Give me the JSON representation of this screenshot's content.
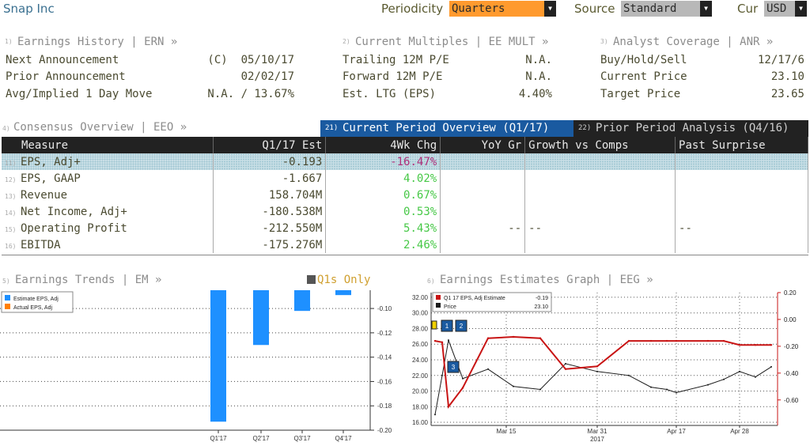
{
  "header": {
    "ticker_name": "Snap Inc",
    "periodicity_label": "Periodicity",
    "periodicity_value": "Quarters",
    "source_label": "Source",
    "source_value": "Standard",
    "cur_label": "Cur",
    "cur_value": "USD"
  },
  "ern": {
    "num": "1)",
    "title": "Earnings History | ERN »",
    "rows": [
      {
        "label": "Next Announcement",
        "value": "(C)  05/10/17"
      },
      {
        "label": "Prior Announcement",
        "value": "02/02/17"
      },
      {
        "label": "Avg/Implied 1 Day Move",
        "value": "N.A. / 13.67%"
      }
    ]
  },
  "mult": {
    "num": "2)",
    "title": "Current Multiples | EE MULT »",
    "rows": [
      {
        "label": "Trailing 12M P/E",
        "value": "N.A."
      },
      {
        "label": "Forward 12M P/E",
        "value": "N.A."
      },
      {
        "label": "Est. LTG (EPS)",
        "value": "4.40%"
      }
    ]
  },
  "anr": {
    "num": "3)",
    "title": "Analyst Coverage | ANR »",
    "rows": [
      {
        "label": "Buy/Hold/Sell",
        "value": "12/17/6"
      },
      {
        "label": "Current Price",
        "value": "23.10"
      },
      {
        "label": "Target Price",
        "value": "23.65"
      }
    ]
  },
  "eeo": {
    "num": "4)",
    "title": "Consensus Overview | EEO »",
    "tab1_num": "21)",
    "tab1": "Current Period Overview (Q1/17)",
    "tab2_num": "22)",
    "tab2": "Prior Period Analysis (Q4/16)",
    "columns": [
      "Measure",
      "Q1/17 Est",
      "4Wk Chg",
      "YoY Gr",
      "Growth vs Comps",
      "Past Surprise"
    ],
    "rows": [
      {
        "num": "11)",
        "measure": "EPS, Adj+",
        "est": "-0.193",
        "chg": "-16.47%",
        "chg_color": "#b0307a"
      },
      {
        "num": "12)",
        "measure": "EPS, GAAP",
        "est": "-1.667",
        "chg": "4.02%",
        "chg_color": "#46c846"
      },
      {
        "num": "13)",
        "measure": "Revenue",
        "est": "158.704M",
        "chg": "0.67%",
        "chg_color": "#46c846"
      },
      {
        "num": "14)",
        "measure": "Net Income, Adj+",
        "est": "-180.538M",
        "chg": "0.53%",
        "chg_color": "#46c846"
      },
      {
        "num": "15)",
        "measure": "Operating Profit",
        "est": "-212.550M",
        "chg": "5.43%",
        "chg_color": "#46c846",
        "yoy": "--",
        "comps": "--",
        "surprise": "--"
      },
      {
        "num": "16)",
        "measure": "EBITDA",
        "est": "-175.276M",
        "chg": "2.46%",
        "chg_color": "#46c846"
      }
    ]
  },
  "em": {
    "num": "5)",
    "title": "Earnings Trends | EM »",
    "toggle": "Q1s Only",
    "legend": [
      "Estimate EPS, Adj",
      "Actual EPS, Adj"
    ]
  },
  "eeg": {
    "num": "6)",
    "title": "Earnings Estimates Graph | EEG »",
    "legend": [
      {
        "label": "Q1 17 EPS, Adj Estimate",
        "value": "-0.19"
      },
      {
        "label": "Price",
        "value": "23.10"
      }
    ],
    "x_labels": [
      "Mar 15",
      "Mar 31",
      "Apr 17",
      "Apr 28"
    ],
    "year_label": "2017",
    "markers": [
      "1",
      "2",
      "3"
    ]
  },
  "colors": {
    "estimate_bar": "#1e90ff",
    "actual_bar": "#ff7f00",
    "est_line": "#c81414",
    "price_line": "#1a1a1a",
    "header_bg": "#222222",
    "selected_dropdown": "#ff9a2e",
    "active_tab": "#1a5aa0"
  },
  "chart_data": [
    {
      "type": "bar",
      "title": "Earnings Trends",
      "categories": [
        "Q1'17",
        "Q2'17",
        "Q3'17",
        "Q4'17"
      ],
      "series": [
        {
          "name": "Estimate EPS, Adj",
          "values": [
            -0.193,
            -0.13,
            -0.102,
            -0.089
          ]
        },
        {
          "name": "Actual EPS, Adj",
          "values": [
            null,
            null,
            null,
            null
          ]
        }
      ],
      "y_ticks": [
        "-0.10",
        "-0.12",
        "-0.14",
        "-0.16",
        "-0.18",
        "-0.20"
      ],
      "ylim": [
        -0.2,
        -0.085
      ],
      "y_axis_side": "right",
      "legend_position": "top-left",
      "grid": true
    },
    {
      "type": "line",
      "title": "Earnings Estimates Graph",
      "x": [
        "Mar 02",
        "Mar 05",
        "Mar 07",
        "Mar 10",
        "Mar 15",
        "Mar 20",
        "Mar 25",
        "Mar 28",
        "Mar 31",
        "Apr 05",
        "Apr 10",
        "Apr 14",
        "Apr 17",
        "Apr 22",
        "Apr 25",
        "Apr 28",
        "May 01",
        "May 05"
      ],
      "series": [
        {
          "name": "Q1 17 EPS, Adj Estimate",
          "axis": "right",
          "values": [
            -0.16,
            -0.17,
            -0.65,
            -0.51,
            -0.14,
            -0.13,
            -0.14,
            -0.37,
            -0.35,
            -0.16,
            -0.16,
            -0.16,
            -0.16,
            -0.16,
            -0.16,
            -0.19,
            -0.19,
            -0.19
          ]
        },
        {
          "name": "Price",
          "axis": "left",
          "values": [
            17.0,
            22.0,
            26.5,
            21.6,
            22.8,
            20.6,
            20.2,
            23.5,
            22.5,
            22.0,
            20.5,
            20.2,
            19.8,
            20.8,
            21.5,
            22.5,
            21.8,
            23.1
          ]
        }
      ],
      "y_left_ticks": [
        "32.00",
        "30.00",
        "28.00",
        "26.00",
        "24.00",
        "22.00",
        "20.00",
        "18.00",
        "16.00"
      ],
      "y_left_lim": [
        15.6,
        32.6
      ],
      "y_right_ticks": [
        "0.20",
        "0.00",
        "-0.20",
        "-0.40",
        "-0.60"
      ],
      "y_right_lim": [
        -0.79,
        0.2
      ],
      "legend_position": "top-left",
      "grid": true
    }
  ]
}
